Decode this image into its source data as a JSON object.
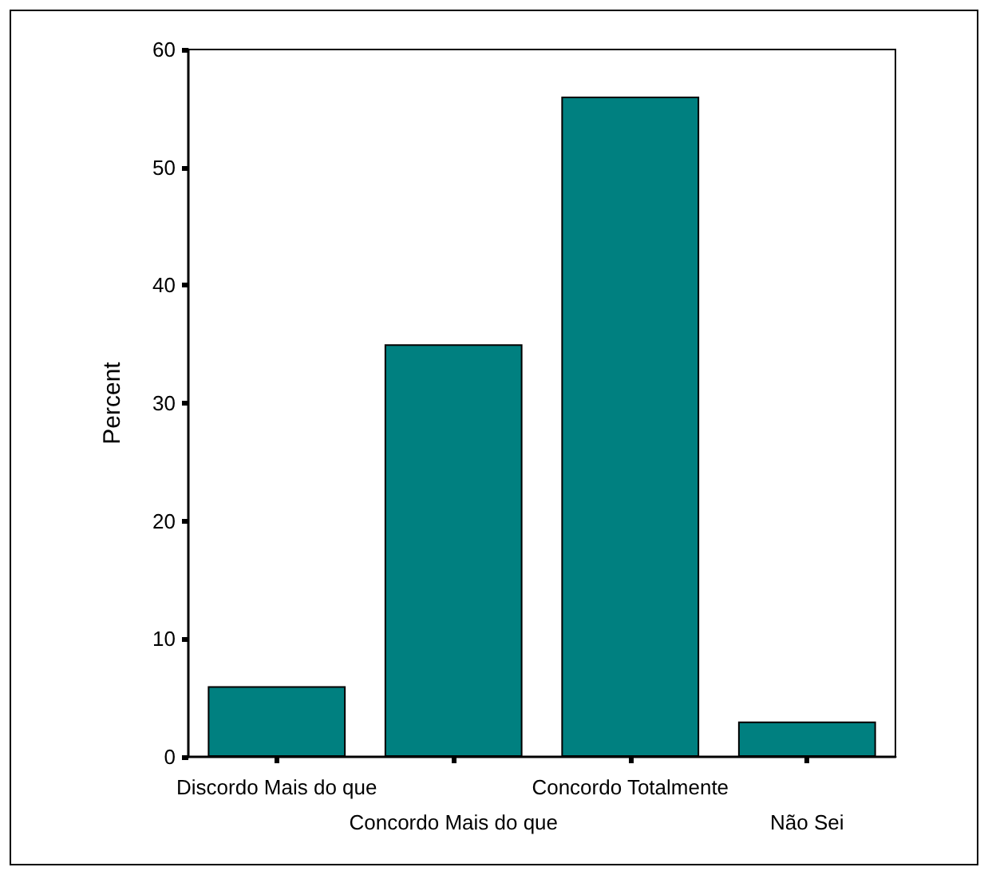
{
  "chart_data": {
    "type": "bar",
    "ylabel": "Percent",
    "categories": [
      "Discordo Mais do que",
      "Concordo Mais do que",
      "Concordo Totalmente",
      "Não Sei"
    ],
    "values": [
      6,
      35,
      56,
      3
    ],
    "color": "#008080",
    "ylim": [
      0,
      60
    ],
    "yticks": [
      0,
      10,
      20,
      30,
      40,
      50,
      60
    ],
    "grid": false
  }
}
